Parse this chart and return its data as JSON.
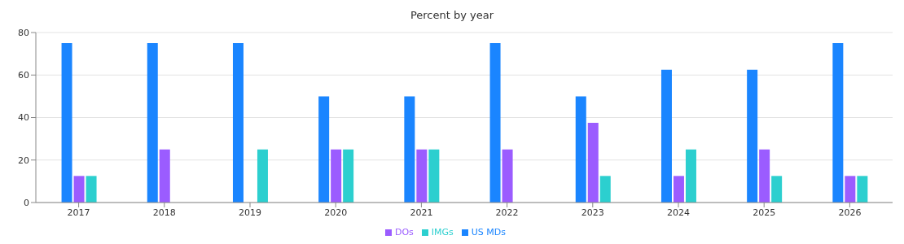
{
  "chart_data": {
    "type": "bar",
    "title": "Percent by year",
    "categories": [
      "2017",
      "2018",
      "2019",
      "2020",
      "2021",
      "2022",
      "2023",
      "2024",
      "2025",
      "2026"
    ],
    "series": [
      {
        "name": "US MDs",
        "color": "#1a85ff",
        "values": [
          75,
          75,
          75,
          50,
          50,
          75,
          50,
          62.5,
          62.5,
          75
        ]
      },
      {
        "name": "DOs",
        "color": "#9b5cff",
        "values": [
          12.5,
          25,
          0,
          25,
          25,
          25,
          37.5,
          12.5,
          25,
          12.5
        ]
      },
      {
        "name": "IMGs",
        "color": "#2ccfcf",
        "values": [
          12.5,
          0,
          25,
          25,
          25,
          0,
          12.5,
          25,
          12.5,
          12.5
        ]
      }
    ],
    "ylim": [
      0,
      80
    ],
    "yticks": [
      0,
      20,
      40,
      60,
      80
    ],
    "grid": "y",
    "legend": "bottom"
  }
}
